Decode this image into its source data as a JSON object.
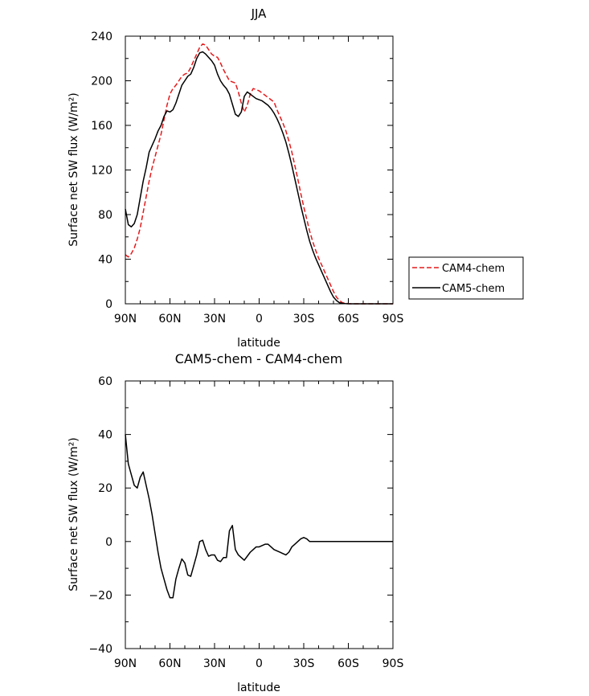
{
  "chart_data": [
    {
      "type": "line",
      "title": "JJA",
      "xlabel": "latitude",
      "ylabel": "Surface net SW flux (W/m²)",
      "xlim": [
        90,
        -90
      ],
      "ylim": [
        0,
        240
      ],
      "x_ticks": [
        90,
        60,
        30,
        0,
        -30,
        -60,
        -90
      ],
      "x_tick_labels": [
        "90N",
        "60N",
        "30N",
        "0",
        "30S",
        "60S",
        "90S"
      ],
      "y_ticks": [
        0,
        40,
        80,
        120,
        160,
        200,
        240
      ],
      "y_tick_labels": [
        "0",
        "40",
        "80",
        "120",
        "160",
        "200",
        "240"
      ],
      "legend": "right",
      "series": [
        {
          "name": "CAM4-chem",
          "color": "#e41a1c",
          "dash": "dashed",
          "x": [
            90,
            88,
            86,
            84,
            82,
            80,
            78,
            76,
            74,
            72,
            70,
            68,
            66,
            64,
            62,
            60,
            58,
            56,
            54,
            52,
            50,
            48,
            46,
            44,
            42,
            40,
            38,
            36,
            34,
            32,
            30,
            28,
            26,
            24,
            22,
            20,
            18,
            16,
            14,
            12,
            10,
            8,
            6,
            4,
            2,
            0,
            -2,
            -4,
            -6,
            -8,
            -10,
            -12,
            -14,
            -16,
            -18,
            -20,
            -22,
            -24,
            -26,
            -28,
            -30,
            -32,
            -34,
            -36,
            -38,
            -40,
            -42,
            -44,
            -46,
            -48,
            -50,
            -52,
            -54,
            -56,
            -58,
            -60,
            -62,
            -64,
            -66,
            -68,
            -70,
            -72,
            -74,
            -76,
            -78,
            -80,
            -82,
            -84,
            -86,
            -88,
            -90
          ],
          "values": [
            44,
            42,
            45,
            50,
            58,
            68,
            82,
            96,
            110,
            122,
            132,
            142,
            152,
            165,
            178,
            188,
            193,
            196,
            200,
            204,
            206,
            207,
            212,
            218,
            224,
            230,
            233,
            232,
            228,
            224,
            222,
            221,
            216,
            210,
            205,
            200,
            199,
            198,
            190,
            180,
            172,
            178,
            188,
            193,
            192,
            191,
            189,
            187,
            185,
            183,
            181,
            174,
            168,
            162,
            155,
            146,
            136,
            124,
            112,
            99,
            87,
            76,
            65,
            56,
            48,
            41,
            35,
            29,
            23,
            17,
            11,
            6,
            3,
            1,
            0.5,
            0.2,
            0,
            0,
            0,
            0,
            0,
            0,
            0,
            0,
            0,
            0,
            0,
            0,
            0,
            0,
            0
          ]
        },
        {
          "name": "CAM5-chem",
          "color": "#000000",
          "dash": "solid",
          "x": [
            90,
            88,
            86,
            84,
            82,
            80,
            78,
            76,
            74,
            72,
            70,
            68,
            66,
            64,
            62,
            60,
            58,
            56,
            54,
            52,
            50,
            48,
            46,
            44,
            42,
            40,
            38,
            36,
            34,
            32,
            30,
            28,
            26,
            24,
            22,
            20,
            18,
            16,
            14,
            12,
            10,
            8,
            6,
            4,
            2,
            0,
            -2,
            -4,
            -6,
            -8,
            -10,
            -12,
            -14,
            -16,
            -18,
            -20,
            -22,
            -24,
            -26,
            -28,
            -30,
            -32,
            -34,
            -36,
            -38,
            -40,
            -42,
            -44,
            -46,
            -48,
            -50,
            -52,
            -54,
            -56,
            -58,
            -60,
            -62,
            -64,
            -66,
            -68,
            -70,
            -72,
            -74,
            -76,
            -78,
            -80,
            -82,
            -84,
            -86,
            -88,
            -90
          ],
          "values": [
            85,
            71,
            69,
            72,
            80,
            95,
            110,
            122,
            136,
            142,
            148,
            155,
            160,
            168,
            173,
            172,
            174,
            180,
            188,
            196,
            200,
            204,
            206,
            212,
            220,
            225,
            226,
            224,
            221,
            218,
            214,
            206,
            200,
            196,
            193,
            188,
            179,
            170,
            168,
            172,
            186,
            190,
            188,
            186,
            184,
            183,
            182,
            180,
            178,
            175,
            171,
            166,
            160,
            153,
            145,
            135,
            124,
            112,
            100,
            88,
            77,
            66,
            56,
            48,
            41,
            35,
            29,
            23,
            17,
            11,
            6,
            3,
            1,
            0.5,
            0.2,
            0,
            0,
            0,
            0,
            0,
            0,
            0,
            0,
            0,
            0,
            0,
            0,
            0,
            0,
            0,
            0
          ]
        }
      ]
    },
    {
      "type": "line",
      "title": "CAM5-chem - CAM4-chem",
      "xlabel": "latitude",
      "ylabel": "Surface net SW flux (W/m²)",
      "xlim": [
        90,
        -90
      ],
      "ylim": [
        -40,
        60
      ],
      "x_ticks": [
        90,
        60,
        30,
        0,
        -30,
        -60,
        -90
      ],
      "x_tick_labels": [
        "90N",
        "60N",
        "30N",
        "0",
        "30S",
        "60S",
        "90S"
      ],
      "y_ticks": [
        -40,
        -20,
        0,
        20,
        40,
        60
      ],
      "y_tick_labels": [
        "−40",
        "−20",
        "0",
        "20",
        "40",
        "60"
      ],
      "series": [
        {
          "color": "#000000",
          "dash": "solid",
          "x": [
            90,
            88,
            86,
            84,
            82,
            80,
            78,
            76,
            74,
            72,
            70,
            68,
            66,
            64,
            62,
            60,
            58,
            56,
            54,
            52,
            50,
            48,
            46,
            44,
            42,
            40,
            38,
            36,
            34,
            32,
            30,
            28,
            26,
            24,
            22,
            20,
            18,
            16,
            14,
            12,
            10,
            8,
            6,
            4,
            2,
            0,
            -2,
            -4,
            -6,
            -8,
            -10,
            -12,
            -14,
            -16,
            -18,
            -20,
            -22,
            -24,
            -26,
            -28,
            -30,
            -32,
            -34,
            -36,
            -38,
            -40,
            -42,
            -44,
            -46,
            -48,
            -50,
            -52,
            -54,
            -56,
            -58,
            -60,
            -62,
            -64,
            -66,
            -68,
            -70,
            -72,
            -74,
            -76,
            -78,
            -80,
            -82,
            -84,
            -86,
            -88,
            -90
          ],
          "values": [
            40,
            29,
            25,
            21,
            20,
            24,
            26,
            21,
            16,
            10,
            3,
            -4,
            -10,
            -14,
            -18,
            -21,
            -21,
            -14,
            -10,
            -6.5,
            -8,
            -12.5,
            -13,
            -9,
            -5,
            0,
            0.5,
            -3,
            -5.5,
            -5,
            -5,
            -7,
            -7.5,
            -6,
            -6,
            4,
            6,
            -3,
            -5,
            -6,
            -7,
            -5.5,
            -4,
            -3,
            -2,
            -2,
            -1.5,
            -1,
            -1,
            -2,
            -3,
            -3.5,
            -4,
            -4.5,
            -5,
            -4,
            -2,
            -1,
            0,
            1,
            1.5,
            1,
            0,
            0,
            0,
            0,
            0,
            0,
            0,
            0,
            0,
            0,
            0,
            0,
            0,
            0,
            0,
            0,
            0,
            0,
            0,
            0,
            0,
            0,
            0,
            0,
            0,
            0,
            0,
            0,
            0
          ]
        }
      ]
    }
  ]
}
